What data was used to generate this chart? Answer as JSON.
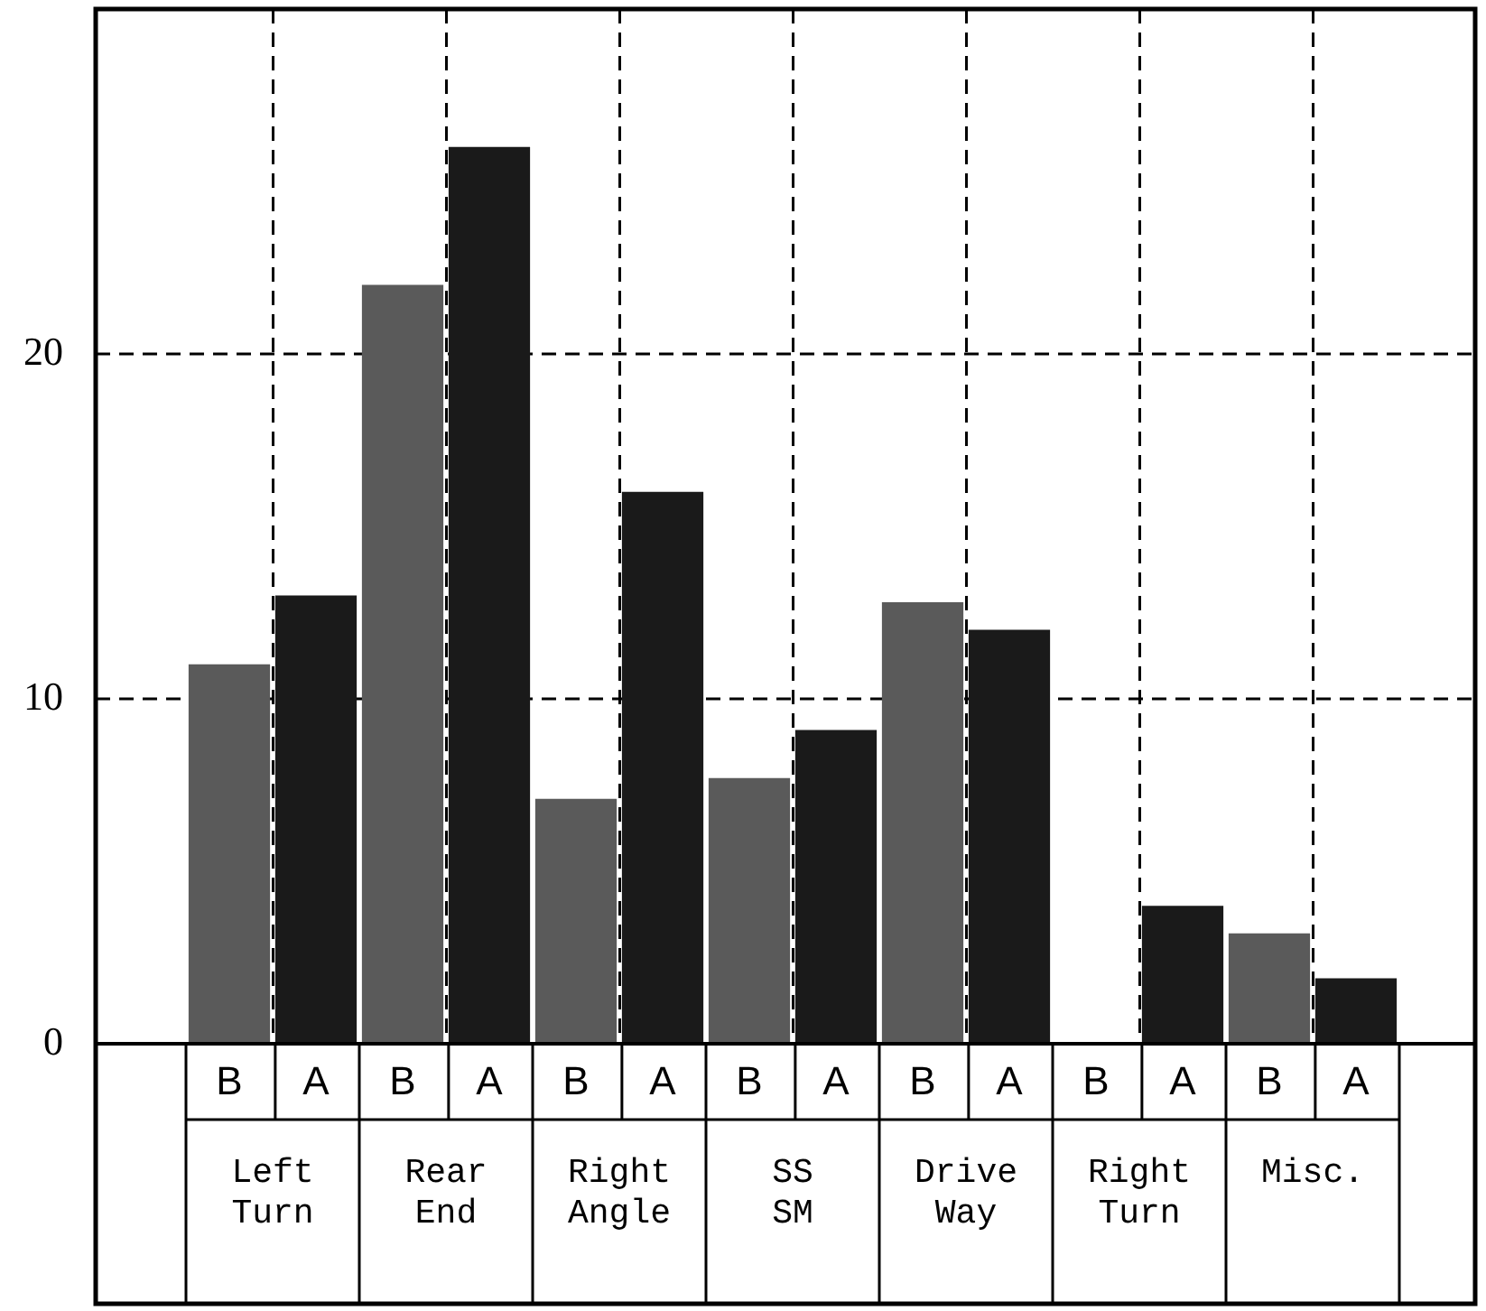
{
  "chart_data": {
    "type": "bar",
    "categories": [
      "Left Turn",
      "Rear End",
      "Right Angle",
      "SS SM",
      "Drive Way",
      "Right Turn",
      "Misc."
    ],
    "series": [
      {
        "name": "B",
        "color": "#5a5a5a",
        "values": [
          11,
          22,
          7.1,
          7.7,
          12.8,
          0,
          3.2
        ]
      },
      {
        "name": "A",
        "color": "#1a1a1a",
        "values": [
          13,
          26,
          16,
          9.1,
          12,
          4,
          1.9
        ]
      }
    ],
    "ylim": [
      0,
      30
    ],
    "yticks": [
      0,
      10,
      20
    ],
    "grid": true
  }
}
